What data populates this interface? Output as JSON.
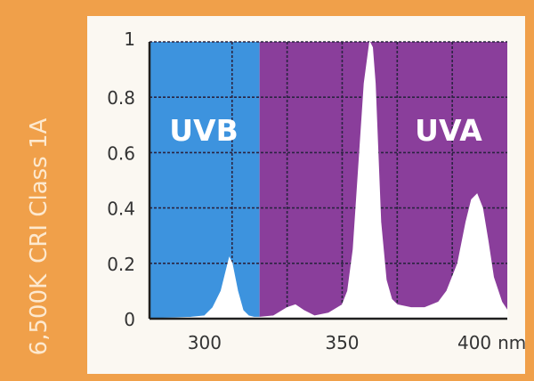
{
  "side_label": {
    "line1": "6,500K",
    "line2": "CRI Class 1A"
  },
  "chart_data": {
    "type": "area",
    "title": "",
    "xlabel": "",
    "ylabel": "",
    "x_unit": "nm",
    "xlim": [
      280,
      410
    ],
    "ylim": [
      0,
      1
    ],
    "x_ticks": [
      {
        "value": 300,
        "label": "300"
      },
      {
        "value": 350,
        "label": "350"
      },
      {
        "value": 400,
        "label": "400"
      }
    ],
    "y_ticks": [
      {
        "value": 0,
        "label": "0"
      },
      {
        "value": 0.2,
        "label": "0.2"
      },
      {
        "value": 0.4,
        "label": "0.4"
      },
      {
        "value": 0.6,
        "label": "0.6"
      },
      {
        "value": 0.8,
        "label": "0.8"
      },
      {
        "value": 1,
        "label": "1"
      }
    ],
    "grid": true,
    "regions": [
      {
        "label": "UVB",
        "from": 280,
        "to": 320,
        "color": "#3d93de"
      },
      {
        "label": "UVA",
        "from": 320,
        "to": 410,
        "color": "#8a3e9b"
      }
    ],
    "series": [
      {
        "name": "",
        "color": "#ffffff",
        "x": [
          280,
          295,
          300,
          303,
          306,
          308,
          309,
          310,
          312,
          314,
          316,
          318,
          320,
          325,
          330,
          333,
          336,
          340,
          345,
          350,
          352,
          354,
          356,
          358,
          360,
          361,
          362,
          364,
          366,
          368,
          370,
          375,
          380,
          385,
          388,
          392,
          395,
          397,
          399,
          401,
          403,
          405,
          408,
          410
        ],
        "y": [
          0,
          0.005,
          0.01,
          0.04,
          0.1,
          0.18,
          0.22,
          0.2,
          0.1,
          0.03,
          0.01,
          0.005,
          0.005,
          0.01,
          0.04,
          0.05,
          0.03,
          0.01,
          0.02,
          0.05,
          0.1,
          0.25,
          0.55,
          0.85,
          1.0,
          0.98,
          0.85,
          0.35,
          0.14,
          0.07,
          0.05,
          0.04,
          0.04,
          0.06,
          0.1,
          0.2,
          0.35,
          0.43,
          0.45,
          0.4,
          0.28,
          0.15,
          0.06,
          0.03
        ]
      }
    ],
    "colors": {
      "frame": "#1f1f1f",
      "grid": "#2a2440",
      "curve": "#ffffff",
      "region_label": "#ffffff"
    }
  }
}
